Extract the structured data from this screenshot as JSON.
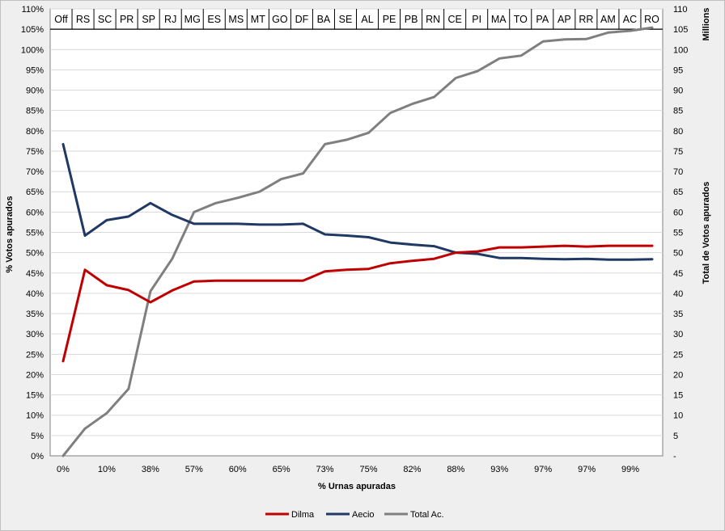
{
  "chart_data": {
    "type": "line",
    "title": "",
    "xlabel": "% Urnas apuradas",
    "ylabel_left": "% Votos apurados",
    "ylabel_right": "Total de Votos apurados",
    "right_unit": "Millions",
    "states": [
      "Off",
      "RS",
      "SC",
      "PR",
      "SP",
      "RJ",
      "MG",
      "ES",
      "MS",
      "MT",
      "GO",
      "DF",
      "BA",
      "SE",
      "AL",
      "PE",
      "PB",
      "RN",
      "CE",
      "PI",
      "MA",
      "TO",
      "PA",
      "AP",
      "RR",
      "AM",
      "AC",
      "RO"
    ],
    "x_tick_labels": [
      "0%",
      "10%",
      "38%",
      "57%",
      "60%",
      "65%",
      "73%",
      "75%",
      "82%",
      "88%",
      "93%",
      "97%",
      "97%",
      "99%"
    ],
    "left_axis": {
      "min": 0,
      "max": 110,
      "step": 5,
      "tick_labels": [
        "0%",
        "5%",
        "10%",
        "15%",
        "20%",
        "25%",
        "30%",
        "35%",
        "40%",
        "45%",
        "50%",
        "55%",
        "60%",
        "65%",
        "70%",
        "75%",
        "80%",
        "85%",
        "90%",
        "95%",
        "100%",
        "105%",
        "110%"
      ]
    },
    "right_axis": {
      "min": 0,
      "max": 110,
      "step": 5,
      "tick_labels": [
        "-",
        "5",
        "10",
        "15",
        "20",
        "25",
        "30",
        "35",
        "40",
        "45",
        "50",
        "55",
        "60",
        "65",
        "70",
        "75",
        "80",
        "85",
        "90",
        "95",
        "100",
        "105",
        "110"
      ]
    },
    "series": [
      {
        "name": "Dilma",
        "color": "#c00000",
        "axis": "left",
        "values": [
          23.3,
          45.8,
          42.0,
          40.8,
          37.8,
          40.7,
          42.9,
          43.1,
          43.1,
          43.1,
          43.1,
          43.1,
          45.4,
          45.8,
          46.0,
          47.4,
          48.0,
          48.5,
          50.0,
          50.3,
          51.3,
          51.3,
          51.5,
          51.7,
          51.5,
          51.7,
          51.7,
          51.7
        ]
      },
      {
        "name": "Aecio",
        "color": "#1f3864",
        "axis": "left",
        "values": [
          76.7,
          54.2,
          58.0,
          58.9,
          62.2,
          59.3,
          57.1,
          57.1,
          57.1,
          56.9,
          56.9,
          57.1,
          54.5,
          54.2,
          53.8,
          52.5,
          52.0,
          51.6,
          50.0,
          49.7,
          48.7,
          48.7,
          48.5,
          48.4,
          48.5,
          48.3,
          48.3,
          48.4
        ]
      },
      {
        "name": "Total Ac.",
        "color": "#7f7f7f",
        "axis": "right",
        "values": [
          0,
          6.7,
          10.5,
          16.5,
          40.5,
          48.5,
          60.0,
          62.2,
          63.5,
          65.0,
          68.1,
          69.5,
          76.7,
          77.8,
          79.5,
          84.4,
          86.6,
          88.3,
          93.0,
          94.7,
          97.8,
          98.5,
          102.0,
          102.5,
          102.6,
          104.2,
          104.6,
          105.4
        ]
      }
    ],
    "legend": {
      "position": "bottom-center",
      "entries": [
        "Dilma",
        "Aecio",
        "Total Ac."
      ]
    }
  }
}
